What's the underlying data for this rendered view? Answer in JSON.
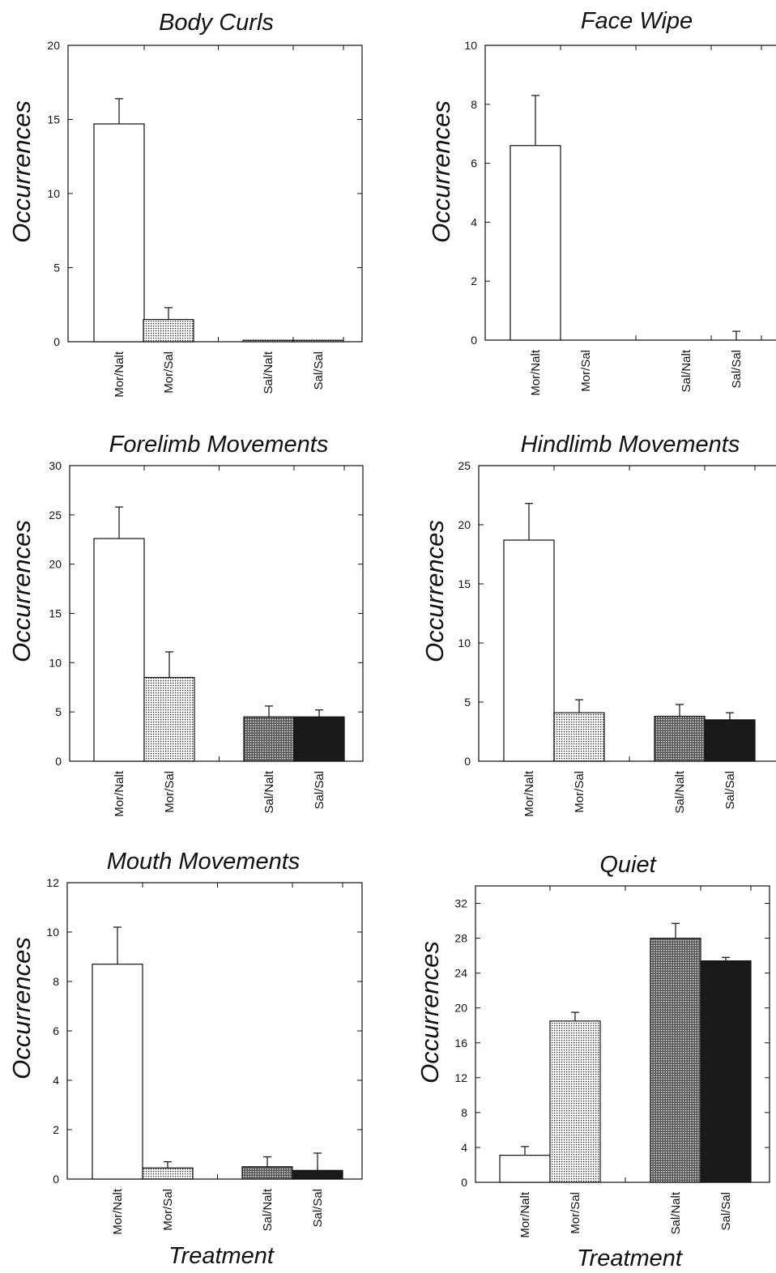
{
  "chart_data": [
    {
      "type": "bar",
      "title": "Body Curls",
      "ylabel": "Occurrences",
      "xlabel": "",
      "ylim": [
        0,
        20
      ],
      "yticks": [
        0,
        5,
        10,
        15,
        20
      ],
      "categories": [
        "Mor/Nalt",
        "Mor/Sal",
        "Sal/Nalt",
        "Sal/Sal"
      ],
      "values": [
        14.7,
        1.5,
        0.1,
        0.1
      ],
      "errors": [
        1.7,
        0.8,
        0,
        0
      ],
      "fills": [
        "white",
        "dots",
        "dots",
        "dots"
      ]
    },
    {
      "type": "bar",
      "title": "Face Wipe",
      "ylabel": "Occurrences",
      "xlabel": "",
      "ylim": [
        0,
        10
      ],
      "yticks": [
        0,
        2,
        4,
        6,
        8,
        10
      ],
      "categories": [
        "Mor/Nalt",
        "Mor/Sal",
        "Sal/Nalt",
        "Sal/Sal"
      ],
      "values": [
        6.6,
        0,
        0,
        0
      ],
      "errors": [
        1.7,
        0,
        0,
        0.3
      ],
      "fills": [
        "white",
        "dots",
        "cross",
        "black"
      ]
    },
    {
      "type": "bar",
      "title": "Forelimb Movements",
      "ylabel": "Occurrences",
      "xlabel": "",
      "ylim": [
        0,
        30
      ],
      "yticks": [
        0,
        5,
        10,
        15,
        20,
        25,
        30
      ],
      "categories": [
        "Mor/Nalt",
        "Mor/Sal",
        "Sal/Nalt",
        "Sal/Sal"
      ],
      "values": [
        22.6,
        8.5,
        4.5,
        4.5
      ],
      "errors": [
        3.2,
        2.6,
        1.1,
        0.7
      ],
      "fills": [
        "white",
        "dots",
        "cross",
        "black"
      ]
    },
    {
      "type": "bar",
      "title": "Hindlimb Movements",
      "ylabel": "Occurrences",
      "xlabel": "",
      "ylim": [
        0,
        25
      ],
      "yticks": [
        0,
        5,
        10,
        15,
        20,
        25
      ],
      "categories": [
        "Mor/Nalt",
        "Mor/Sal",
        "Sal/Nalt",
        "Sal/Sal"
      ],
      "values": [
        18.7,
        4.1,
        3.8,
        3.5
      ],
      "errors": [
        3.1,
        1.1,
        1.0,
        0.6
      ],
      "fills": [
        "white",
        "dots",
        "cross",
        "black"
      ]
    },
    {
      "type": "bar",
      "title": "Mouth Movements",
      "ylabel": "Occurrences",
      "xlabel": "Treatment",
      "ylim": [
        0,
        12
      ],
      "yticks": [
        0,
        2,
        4,
        6,
        8,
        10,
        12
      ],
      "categories": [
        "Mor/Nalt",
        "Mor/Sal",
        "Sal/Nalt",
        "Sal/Sal"
      ],
      "values": [
        8.7,
        0.45,
        0.5,
        0.35
      ],
      "errors": [
        1.5,
        0.25,
        0.4,
        0.7
      ],
      "fills": [
        "white",
        "dots",
        "cross",
        "black"
      ]
    },
    {
      "type": "bar",
      "title": "Quiet",
      "ylabel": "Occurrences",
      "xlabel": "Treatment",
      "ylim": [
        0,
        34
      ],
      "yticks": [
        0,
        4,
        8,
        12,
        16,
        20,
        24,
        28,
        32
      ],
      "categories": [
        "Mor/Nalt",
        "Mor/Sal",
        "Sal/Nalt",
        "Sal/Sal"
      ],
      "values": [
        3.1,
        18.5,
        28.0,
        25.4
      ],
      "errors": [
        1.0,
        1.0,
        1.7,
        0.4
      ],
      "fills": [
        "white",
        "dots",
        "cross",
        "black"
      ]
    }
  ]
}
